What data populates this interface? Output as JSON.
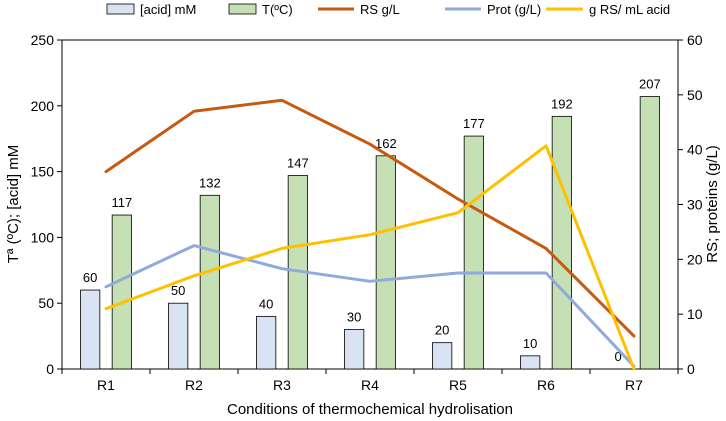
{
  "chart_data": {
    "type": "bar",
    "title": "",
    "categories": [
      "R1",
      "R2",
      "R3",
      "R4",
      "R5",
      "R6",
      "R7"
    ],
    "xlabel": "Conditions of thermochemical hydrolisation",
    "ylabel_left": "Tª (ºC); [acid] mM",
    "ylabel_right": "RS;  proteins (g/L)",
    "ylim_left": [
      0,
      250
    ],
    "yticks_left": [
      0,
      50,
      100,
      150,
      200,
      250
    ],
    "ylim_right": [
      0,
      60
    ],
    "yticks_right": [
      0,
      10,
      20,
      30,
      40,
      50,
      60
    ],
    "legend_position": "top",
    "series": [
      {
        "name": "[acid] mM",
        "type": "bar",
        "axis": "left",
        "color": "#dae3f3",
        "stroke": "#000000",
        "values": [
          60,
          50,
          40,
          30,
          20,
          10,
          0
        ],
        "labels": [
          "60",
          "50",
          "40",
          "30",
          "20",
          "10",
          "0"
        ]
      },
      {
        "name": "T(ºC)",
        "type": "bar",
        "axis": "left",
        "color": "#c5e0b4",
        "stroke": "#000000",
        "values": [
          117,
          132,
          147,
          162,
          177,
          192,
          207
        ],
        "labels": [
          "117",
          "132",
          "147",
          "162",
          "177",
          "192",
          "207"
        ]
      },
      {
        "name": "RS g/L",
        "type": "line",
        "axis": "right",
        "color": "#c55a11",
        "values": [
          36,
          47,
          49,
          41,
          31,
          22,
          6
        ]
      },
      {
        "name": "Prot  (g/L)",
        "type": "line",
        "axis": "right",
        "color": "#8faadc",
        "values": [
          15,
          22.5,
          18.3,
          16,
          17.5,
          17.5,
          0.5
        ]
      },
      {
        "name": "g RS/ mL acid",
        "type": "line",
        "axis": "right",
        "color": "#ffc000",
        "values": [
          11,
          17,
          22,
          24.5,
          28.5,
          40.7,
          0
        ]
      }
    ]
  }
}
